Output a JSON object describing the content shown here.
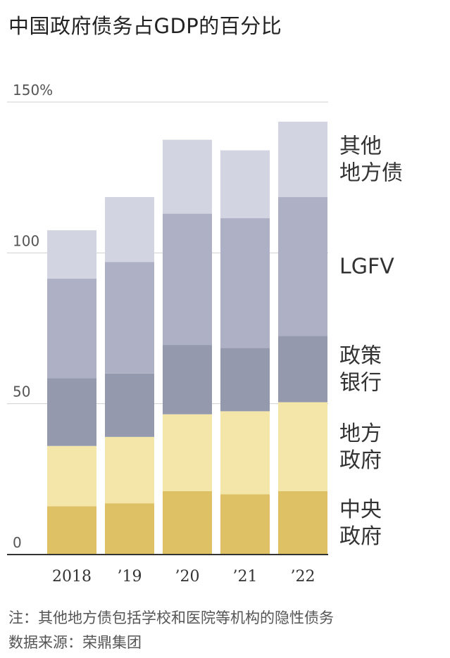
{
  "title": "中国政府债务占GDP的百分比",
  "chart_data": {
    "type": "bar",
    "stacked": true,
    "categories": [
      "2018",
      "’19",
      "’20",
      "’21",
      "’22"
    ],
    "yticks": [
      "0",
      "50",
      "100",
      "150%"
    ],
    "ylim": [
      0,
      150
    ],
    "grid": true,
    "legend_placement": "right, labels aligned to stacked segments",
    "series": [
      {
        "name": "中央政府",
        "label_lines": [
          "中央",
          "政府"
        ],
        "color": "#dfc165",
        "values": [
          16,
          17,
          21,
          20,
          21
        ]
      },
      {
        "name": "地方政府",
        "label_lines": [
          "地方",
          "政府"
        ],
        "color": "#f4e5a8",
        "values": [
          20,
          22,
          25.5,
          27.5,
          29.5
        ]
      },
      {
        "name": "政策银行",
        "label_lines": [
          "政策",
          "银行"
        ],
        "color": "#9499ae",
        "values": [
          22.5,
          21,
          23,
          21,
          22
        ]
      },
      {
        "name": "LGFV",
        "label_lines": [
          "LGFV"
        ],
        "color": "#aeb0c6",
        "values": [
          33,
          37,
          43.5,
          43,
          46
        ]
      },
      {
        "name": "其他地方债",
        "label_lines": [
          "其他",
          "地方债"
        ],
        "color": "#d2d5e1",
        "values": [
          16,
          21.5,
          24.5,
          22.5,
          25
        ]
      }
    ]
  },
  "notes": {
    "line1": "注：其他地方债包括学校和医院等机构的隐性债务",
    "line2": "数据来源：荣鼎集团"
  }
}
